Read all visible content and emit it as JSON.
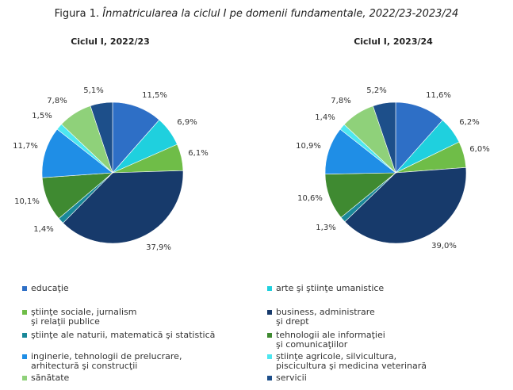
{
  "figure": {
    "label": "Figura 1.",
    "title": "Înmatricularea la ciclul I pe domenii fundamentale, 2022/23-2023/24"
  },
  "chart_data": [
    {
      "type": "pie",
      "title": "Ciclul I, 2022/23",
      "categories": [
        "educaţie",
        "arte şi ştiinţe umanistice",
        "ştiinţe sociale, jurnalism şi relaţii publice",
        "business, administrare şi drept",
        "ştiinţe ale naturii, matematică şi statistică",
        "tehnologii ale informaţiei şi comunicaţiilor",
        "inginerie, tehnologii de prelucrare, arhitectură şi construcţii",
        "ştiinţe agricole, silvicultura, piscicultura şi medicina veterinară",
        "sănătate",
        "servicii"
      ],
      "values": [
        11.5,
        6.9,
        6.1,
        37.9,
        1.4,
        10.1,
        11.7,
        1.5,
        7.8,
        5.1
      ],
      "labels": [
        "11,5%",
        "6,9%",
        "6,1%",
        "37,9%",
        "1,4%",
        "10,1%",
        "11,7%",
        "1,5%",
        "7,8%",
        "5,1%"
      ]
    },
    {
      "type": "pie",
      "title": "Ciclul I, 2023/24",
      "categories": [
        "educaţie",
        "arte şi ştiinţe umanistice",
        "ştiinţe sociale, jurnalism şi relaţii publice",
        "business, administrare şi drept",
        "ştiinţe ale naturii, matematică şi statistică",
        "tehnologii ale informaţiei şi comunicaţiilor",
        "inginerie, tehnologii de prelucrare, arhitectură şi construcţii",
        "ştiinţe agricole, silvicultura, piscicultura şi medicina veterinară",
        "sănătate",
        "servicii"
      ],
      "values": [
        11.6,
        6.2,
        6.0,
        39.0,
        1.3,
        10.6,
        10.9,
        1.4,
        7.8,
        5.2
      ],
      "labels": [
        "11,6%",
        "6,2%",
        "6,0%",
        "39,0%",
        "1,3%",
        "10,6%",
        "10,9%",
        "1,4%",
        "7,8%",
        "5,2%"
      ]
    }
  ],
  "colors": [
    "#2e6fc6",
    "#1fd0de",
    "#6fbd48",
    "#173a6b",
    "#1a8899",
    "#3f8a31",
    "#1f8ee6",
    "#4de7f0",
    "#8fd17a",
    "#1d4f8a"
  ],
  "legend": [
    {
      "text": "educaţie"
    },
    {
      "text": "arte şi ştiinţe umanistice"
    },
    {
      "text": "ştiinţe sociale, jurnalism\nşi relaţii publice"
    },
    {
      "text": "business, administrare\nşi drept"
    },
    {
      "text": "ştiinţe ale naturii, matematică şi statistică"
    },
    {
      "text": "tehnologii ale informaţiei\nşi comunicaţiilor"
    },
    {
      "text": "inginerie, tehnologii de prelucrare,\narhitectură şi construcţii"
    },
    {
      "text": "ştiinţe agricole, silvicultura,\npiscicultura şi  medicina veterinară"
    },
    {
      "text": "sănătate"
    },
    {
      "text": "servicii"
    }
  ]
}
